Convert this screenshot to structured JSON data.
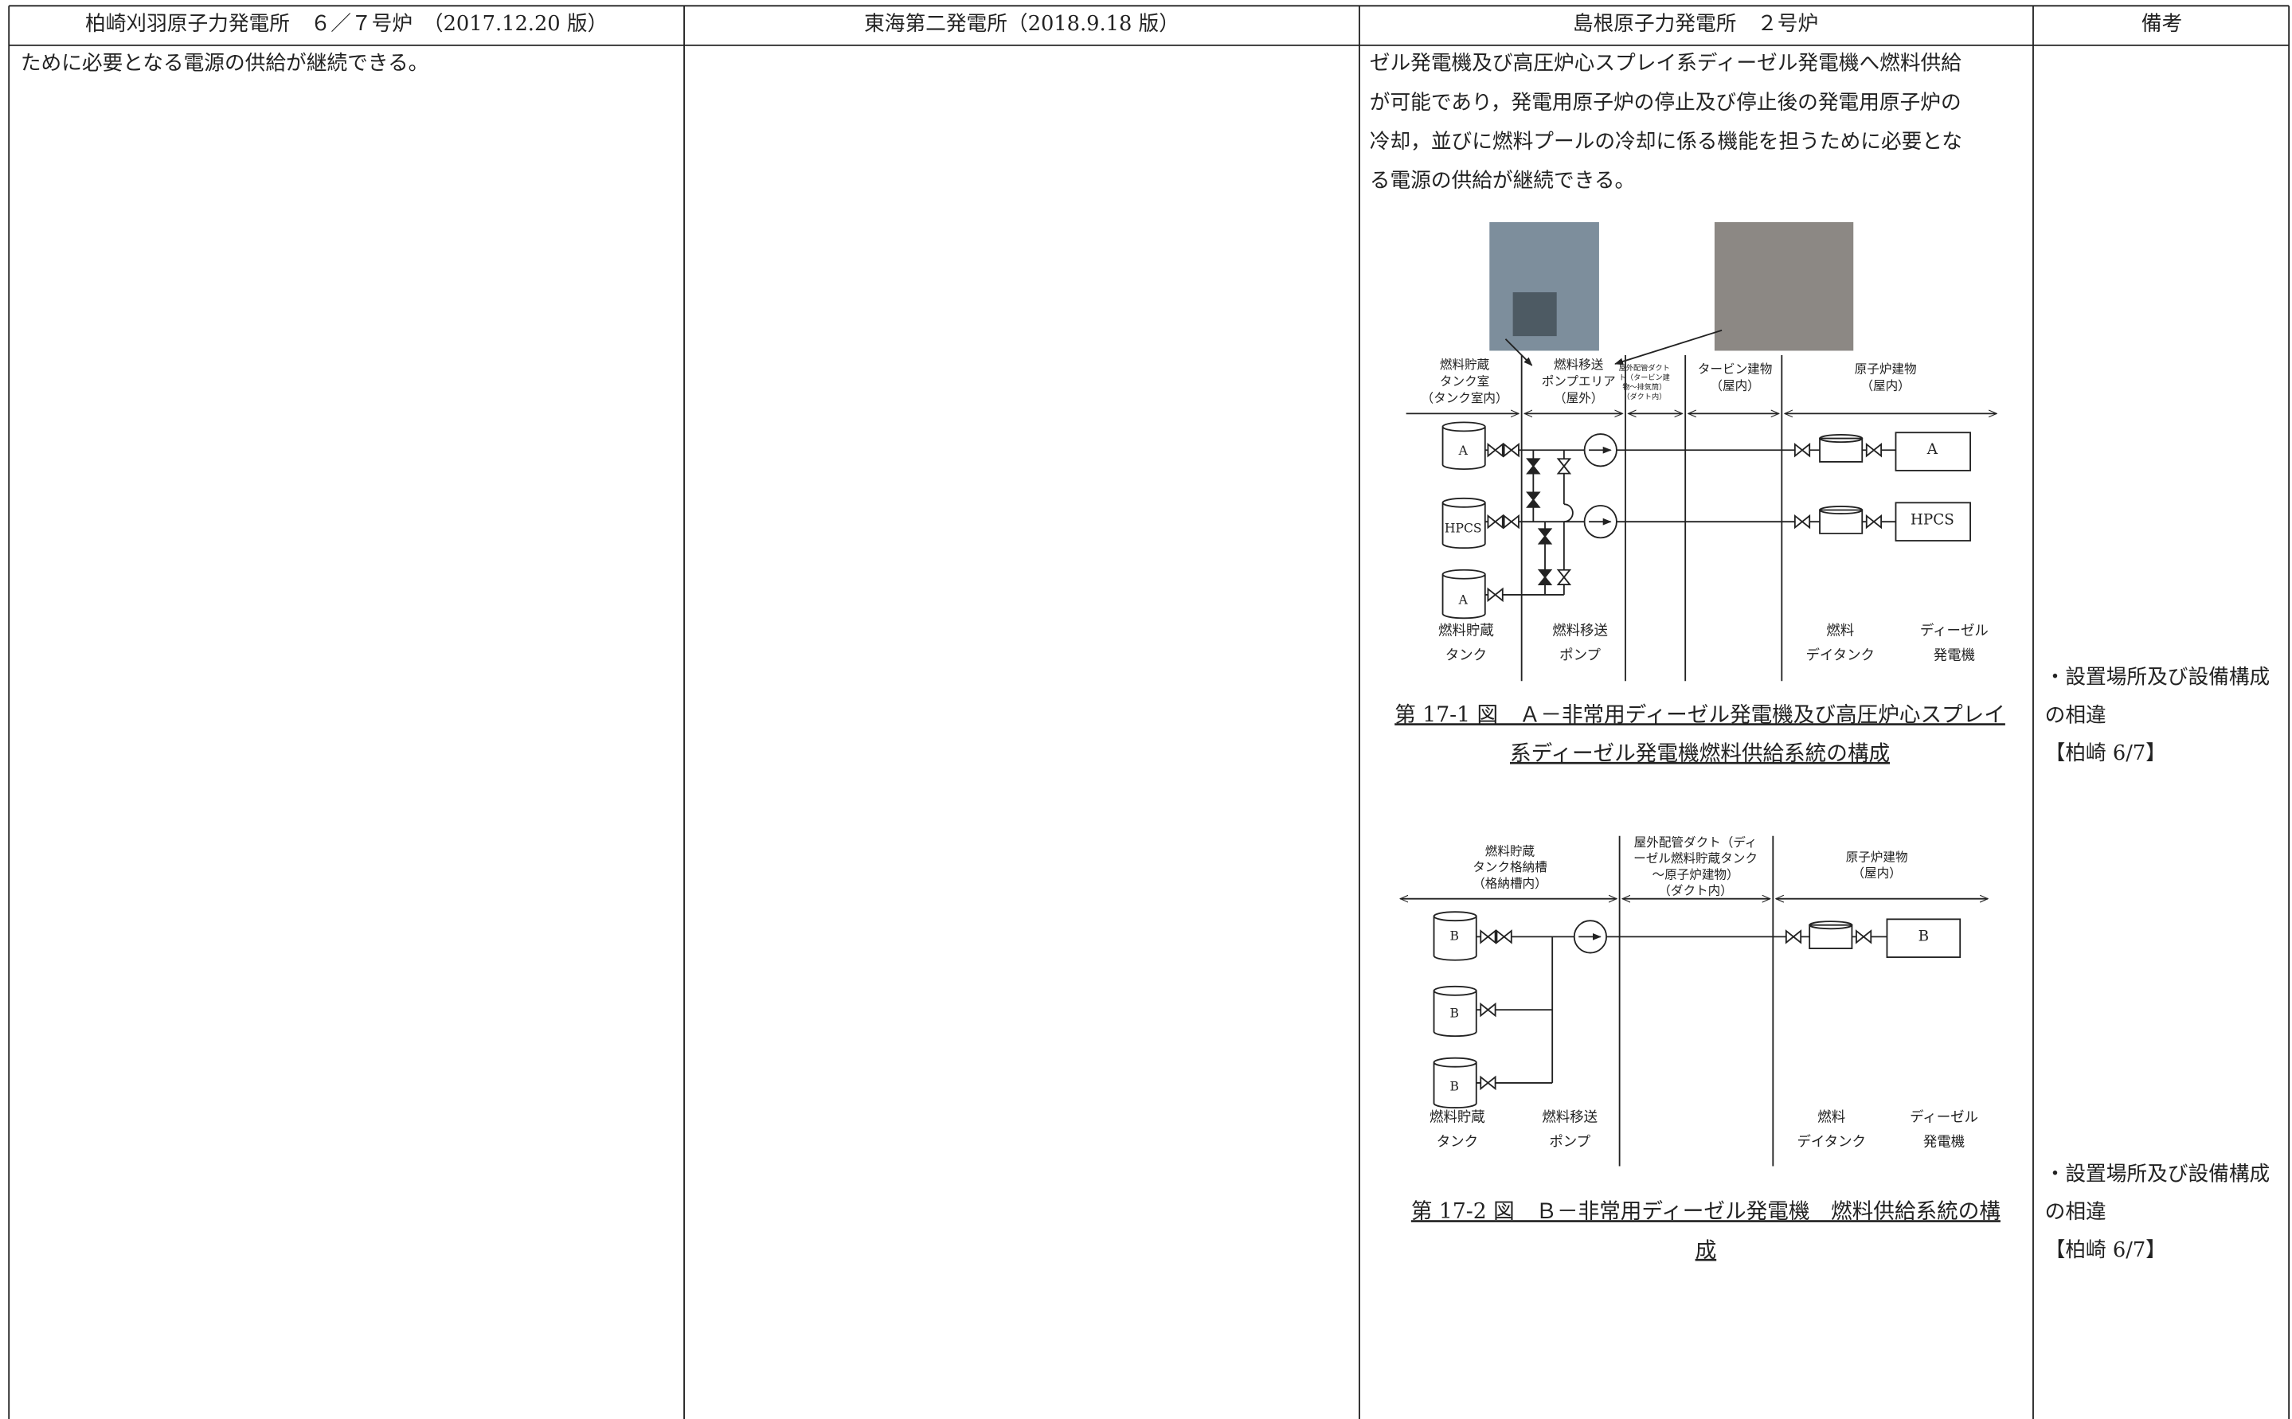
{
  "header": [
    "柏崎刈羽原子力発電所　６／７号炉　（2017.12.20 版）",
    "東海第二発電所（2018.9.18 版）",
    "島根原子力発電所　２号炉",
    "備考"
  ],
  "kashiwazaki": {
    "lines": [
      "ために必要となる電源の供給が継続できる。"
    ]
  },
  "shimane": {
    "paragraph": [
      "ゼル発電機及び高圧炉心スプレイ系ディーゼル発電機へ燃料供給",
      "が可能であり，発電用原子炉の停止及び停止後の発電用原子炉の",
      "冷却，並びに燃料プールの冷却に係る機能を担うために必要とな",
      "る電源の供給が継続できる。"
    ],
    "figure1": {
      "area_labels": [
        [
          "燃料貯蔵",
          "タンク室",
          "（タンク室内）"
        ],
        [
          "燃料移送",
          "ポンプエリア",
          "（屋外）"
        ],
        [
          "屋外配管ダクト",
          "ト（タービン建",
          "物～排気筒）",
          "（ダクト内）"
        ],
        [
          "タービン建物",
          "（屋内）"
        ],
        [
          "原子炉建物",
          "（屋内）"
        ]
      ],
      "tank_labels": [
        "A",
        "HPCS",
        "A"
      ],
      "unit_labels": [
        "A",
        "HPCS"
      ],
      "bottom_labels": [
        [
          "燃料貯蔵",
          "タンク"
        ],
        [
          "燃料移送",
          "ポンプ"
        ],
        [
          "燃料",
          "デイタンク"
        ],
        [
          "ディーゼル",
          "発電機"
        ]
      ],
      "caption": [
        "第 17-1 図　Ａ－非常用ディーゼル発電機及び高圧炉心スプレイ",
        "系ディーゼル発電機燃料供給系統の構成"
      ]
    },
    "figure2": {
      "area_labels": [
        [
          "燃料貯蔵",
          "タンク格納槽",
          "（格納槽内）"
        ],
        [
          "屋外配管ダクト（ディ",
          "ーゼル燃料貯蔵タンク",
          "～原子炉建物）",
          "（ダクト内）"
        ],
        [
          "原子炉建物",
          "（屋内）"
        ]
      ],
      "tank_labels": [
        "B",
        "B",
        "B"
      ],
      "unit_labels": [
        "B"
      ],
      "bottom_labels": [
        [
          "燃料貯蔵",
          "タンク"
        ],
        [
          "燃料移送",
          "ポンプ"
        ],
        [
          "燃料",
          "デイタンク"
        ],
        [
          "ディーゼル",
          "発電機"
        ]
      ],
      "caption": [
        "第 17-2 図　Ｂ－非常用ディーゼル発電機　燃料供給系統の構",
        "成"
      ]
    }
  },
  "remarks": {
    "note1": [
      "・設置場所及び設備構成",
      "の相違",
      "【柏崎 6/7】"
    ],
    "note2": [
      "・設置場所及び設備構成",
      "の相違",
      "【柏崎 6/7】"
    ]
  }
}
